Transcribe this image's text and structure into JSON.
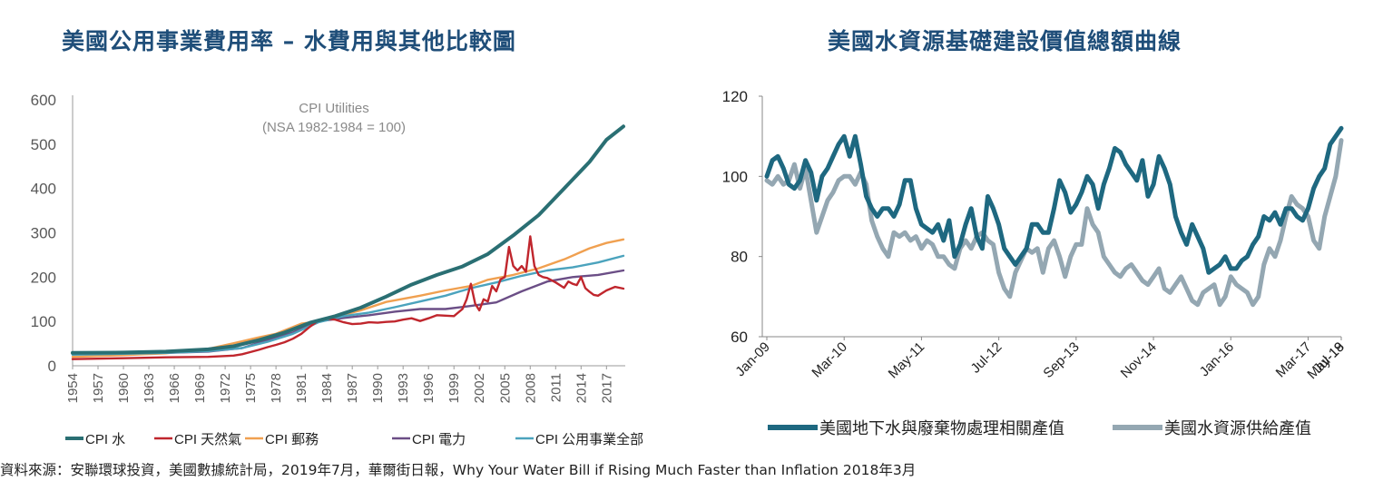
{
  "left_chart": {
    "title": "美國公用事業費用率 – 水費用與其他比較圖",
    "inner_title_1": "CPI Utilities",
    "inner_title_2": "(NSA 1982-1984 = 100)",
    "chart_data": {
      "type": "line",
      "ylim": [
        0,
        600
      ],
      "y_ticks": [
        "0",
        "100",
        "200",
        "300",
        "400",
        "500",
        "600"
      ],
      "x_tick_labels": [
        "1954",
        "1957",
        "1960",
        "1963",
        "1966",
        "1969",
        "1972",
        "1975",
        "1978",
        "1981",
        "1984",
        "1987",
        "1990",
        "1993",
        "1996",
        "1999",
        "2002",
        "2005",
        "2008",
        "2011",
        "2014",
        "2017"
      ],
      "xlim": [
        1954,
        2019
      ],
      "legend_position": "bottom",
      "grid": false,
      "series": [
        {
          "name": "CPI 水",
          "color": "#2a6f73",
          "x": [
            1954,
            1960,
            1965,
            1970,
            1973,
            1976,
            1979,
            1982,
            1985,
            1988,
            1991,
            1994,
            1997,
            2000,
            2003,
            2006,
            2009,
            2012,
            2015,
            2017,
            2019
          ],
          "y": [
            29,
            30,
            32,
            37,
            44,
            58,
            75,
            97,
            112,
            131,
            156,
            183,
            205,
            224,
            252,
            294,
            340,
            400,
            460,
            510,
            540
          ]
        },
        {
          "name": "CPI 天然氣",
          "color": "#c0262d",
          "x": [
            1954,
            1960,
            1965,
            1970,
            1973,
            1974,
            1975,
            1976,
            1977,
            1978,
            1979,
            1980,
            1981,
            1982,
            1983,
            1984,
            1985,
            1986,
            1987,
            1988,
            1989,
            1990,
            1991,
            1992,
            1993,
            1994,
            1995,
            1996,
            1997,
            1998,
            1999,
            2000,
            2000.5,
            2001,
            2001.5,
            2002,
            2002.5,
            2003,
            2003.5,
            2004,
            2004.5,
            2005,
            2005.5,
            2006,
            2006.5,
            2007,
            2007.5,
            2008,
            2008.5,
            2009,
            2009.5,
            2010,
            2011,
            2012,
            2012.5,
            2013,
            2013.5,
            2014,
            2014.5,
            2015,
            2015.5,
            2016,
            2017,
            2018,
            2019
          ],
          "y": [
            15,
            17,
            19,
            20,
            23,
            26,
            31,
            36,
            42,
            47,
            53,
            61,
            72,
            88,
            102,
            106,
            104,
            98,
            94,
            95,
            98,
            97,
            99,
            100,
            104,
            107,
            101,
            107,
            114,
            113,
            112,
            128,
            150,
            185,
            140,
            125,
            150,
            145,
            180,
            168,
            195,
            200,
            268,
            225,
            215,
            225,
            212,
            292,
            225,
            205,
            200,
            198,
            188,
            176,
            190,
            185,
            182,
            200,
            175,
            167,
            160,
            158,
            170,
            178,
            174
          ]
        },
        {
          "name": "CPI 郵務",
          "color": "#f0a050",
          "x": [
            1954,
            1960,
            1965,
            1970,
            1974,
            1976,
            1978,
            1981,
            1983,
            1985,
            1988,
            1991,
            1995,
            1998,
            2001,
            2003,
            2006,
            2009,
            2012,
            2015,
            2017,
            2019
          ],
          "y": [
            20,
            24,
            28,
            38,
            55,
            64,
            72,
            95,
            100,
            110,
            125,
            144,
            158,
            170,
            180,
            194,
            205,
            220,
            240,
            265,
            277,
            285
          ]
        },
        {
          "name": "CPI 電力",
          "color": "#6b4e86",
          "x": [
            1954,
            1960,
            1965,
            1970,
            1974,
            1977,
            1980,
            1983,
            1986,
            1989,
            1992,
            1995,
            1998,
            2001,
            2004,
            2007,
            2010,
            2013,
            2016,
            2019
          ],
          "y": [
            28,
            29,
            29,
            32,
            40,
            58,
            75,
            100,
            108,
            114,
            122,
            128,
            128,
            135,
            143,
            168,
            190,
            200,
            205,
            215
          ]
        },
        {
          "name": "CPI 公用事業全部",
          "color": "#4ba3bd",
          "x": [
            1954,
            1960,
            1965,
            1970,
            1974,
            1977,
            1980,
            1983,
            1986,
            1989,
            1992,
            1995,
            1998,
            2001,
            2004,
            2007,
            2010,
            2013,
            2016,
            2019
          ],
          "y": [
            25,
            27,
            29,
            33,
            40,
            54,
            72,
            98,
            112,
            120,
            132,
            145,
            158,
            175,
            188,
            203,
            215,
            222,
            233,
            248
          ]
        }
      ]
    }
  },
  "right_chart": {
    "title": "美國水資源基礎建設價值總額曲線",
    "chart_data": {
      "type": "line",
      "ylim": [
        60,
        120
      ],
      "y_ticks": [
        "60",
        "80",
        "100",
        "120"
      ],
      "x_tick_labels": [
        "Jan-09",
        "Mar-10",
        "May-11",
        "Jul-12",
        "Sep-13",
        "Nov-14",
        "Jan-16",
        "Mar-17",
        "May-18",
        "Jul-19"
      ],
      "legend_position": "bottom",
      "grid": false,
      "series": [
        {
          "name": "美國地下水與廢棄物處理相關產值",
          "color": "#1e6880",
          "y": [
            100,
            104,
            105,
            102,
            98,
            97,
            99,
            104,
            101,
            94,
            100,
            102,
            105,
            108,
            110,
            105,
            110,
            103,
            95,
            92,
            90,
            92,
            92,
            90,
            93,
            99,
            99,
            92,
            88,
            87,
            86,
            88,
            84,
            89,
            80,
            83,
            88,
            92,
            85,
            82,
            95,
            92,
            88,
            82,
            80,
            78,
            80,
            82,
            88,
            88,
            86,
            86,
            92,
            99,
            96,
            91,
            93,
            96,
            100,
            98,
            92,
            98,
            102,
            107,
            106,
            103,
            101,
            99,
            104,
            95,
            98,
            105,
            102,
            98,
            90,
            86,
            83,
            88,
            85,
            82,
            76,
            77,
            78,
            80,
            77,
            77,
            79,
            80,
            83,
            85,
            90,
            89,
            91,
            88,
            92,
            92,
            90,
            89,
            92,
            97,
            100,
            102,
            108,
            110,
            112
          ]
        },
        {
          "name": "美國水資源供給產值",
          "color": "#94a7b2",
          "y": [
            99,
            98,
            100,
            98,
            99,
            103,
            97,
            102,
            94,
            86,
            90,
            94,
            96,
            99,
            100,
            100,
            98,
            101,
            98,
            89,
            85,
            82,
            80,
            86,
            85,
            86,
            84,
            85,
            82,
            84,
            83,
            80,
            80,
            78,
            77,
            82,
            84,
            82,
            85,
            86,
            84,
            83,
            76,
            72,
            70,
            76,
            79,
            82,
            81,
            82,
            76,
            82,
            84,
            80,
            75,
            80,
            83,
            83,
            92,
            88,
            86,
            80,
            78,
            76,
            75,
            77,
            78,
            76,
            74,
            73,
            75,
            77,
            72,
            71,
            73,
            75,
            72,
            69,
            68,
            71,
            72,
            73,
            68,
            70,
            75,
            73,
            72,
            71,
            68,
            70,
            78,
            82,
            80,
            84,
            90,
            95,
            93,
            92,
            90,
            84,
            82,
            90,
            95,
            100,
            109
          ]
        }
      ]
    }
  },
  "source": "資料來源：安聯環球投資，美國數據統計局，2019年7月，華爾街日報，Why Your Water Bill if Rising Much Faster than Inflation 2018年3月"
}
